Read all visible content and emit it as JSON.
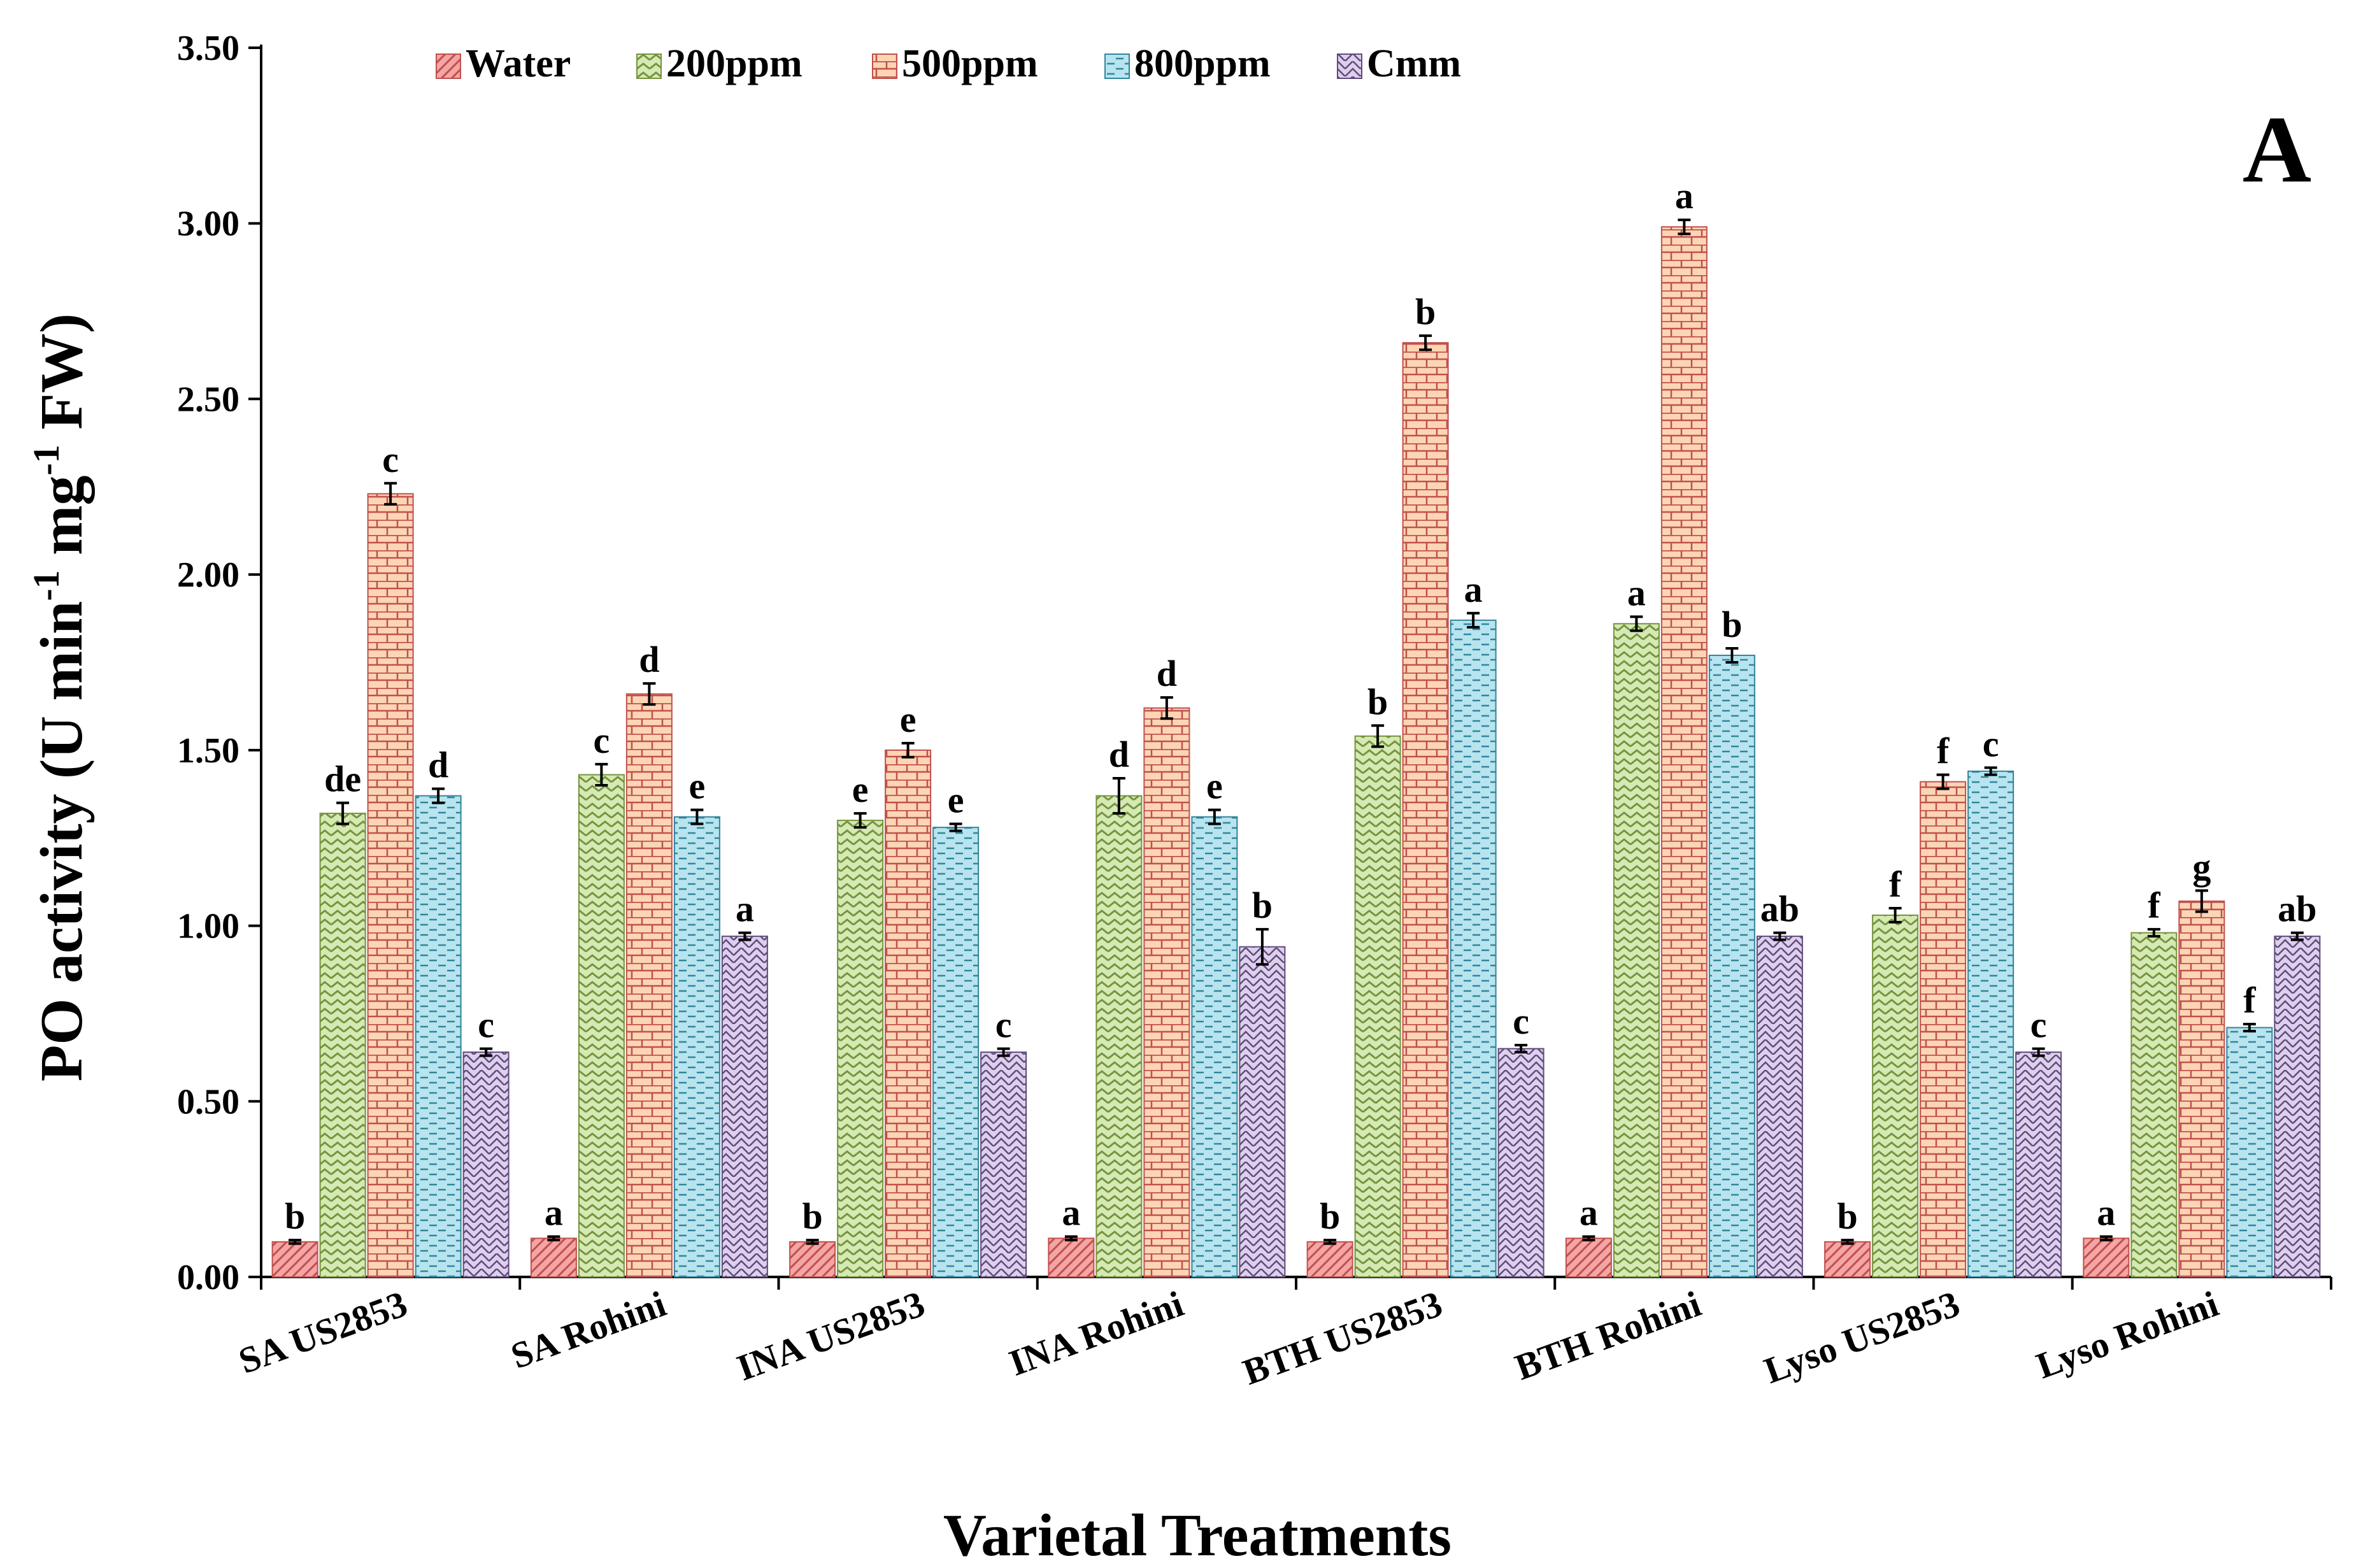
{
  "chart_data": {
    "type": "bar",
    "panel_label": "A",
    "xlabel": "Varietal Treatments",
    "ylabel": {
      "part1": "PO activity (U min",
      "sup1": "-1",
      "part2": " mg",
      "sup2": "-1",
      "part3": " FW)"
    },
    "ylim": [
      0,
      3.5
    ],
    "yticks": [
      {
        "value": 0,
        "label": "0.00"
      },
      {
        "value": 0.5,
        "label": "0.50"
      },
      {
        "value": 1.0,
        "label": "1.00"
      },
      {
        "value": 1.5,
        "label": "1.50"
      },
      {
        "value": 2.0,
        "label": "2.00"
      },
      {
        "value": 2.5,
        "label": "2.50"
      },
      {
        "value": 3.0,
        "label": "3.00"
      },
      {
        "value": 3.5,
        "label": "3.50"
      }
    ],
    "grid": false,
    "legend_position": "top-left",
    "categories": [
      "SA US2853",
      "SA Rohini",
      "INA US2853",
      "INA Rohini",
      "BTH US2853",
      "BTH Rohini",
      "Lyso US2853",
      "Lyso Rohini"
    ],
    "series": [
      {
        "name": "Water",
        "fill": "#f4a5a5",
        "stroke": "#c0504d",
        "pattern": "diag",
        "values": [
          0.1,
          0.11,
          0.1,
          0.11,
          0.1,
          0.11,
          0.1,
          0.11
        ],
        "errors": [
          0.005,
          0.005,
          0.005,
          0.005,
          0.005,
          0.005,
          0.005,
          0.005
        ],
        "letters": [
          "b",
          "a",
          "b",
          "a",
          "b",
          "a",
          "b",
          "a"
        ]
      },
      {
        "name": "200ppm",
        "fill": "#d5e9b5",
        "stroke": "#76933c",
        "pattern": "zigzag",
        "values": [
          1.32,
          1.43,
          1.3,
          1.37,
          1.54,
          1.86,
          1.03,
          0.98
        ],
        "errors": [
          0.03,
          0.03,
          0.02,
          0.05,
          0.03,
          0.02,
          0.02,
          0.01
        ],
        "letters": [
          "de",
          "c",
          "e",
          "d",
          "b",
          "a",
          "f",
          "f"
        ]
      },
      {
        "name": "500ppm",
        "fill": "#fcd5b4",
        "stroke": "#c0504d",
        "pattern": "brick",
        "values": [
          2.23,
          1.66,
          1.5,
          1.62,
          2.66,
          2.99,
          1.41,
          1.07
        ],
        "errors": [
          0.03,
          0.03,
          0.02,
          0.03,
          0.02,
          0.02,
          0.02,
          0.03
        ],
        "letters": [
          "c",
          "d",
          "e",
          "d",
          "b",
          "a",
          "f",
          "g"
        ]
      },
      {
        "name": "800ppm",
        "fill": "#b7e4ee",
        "stroke": "#31859c",
        "pattern": "dash",
        "values": [
          1.37,
          1.31,
          1.28,
          1.31,
          1.87,
          1.77,
          1.44,
          0.71
        ],
        "errors": [
          0.02,
          0.02,
          0.01,
          0.02,
          0.02,
          0.02,
          0.01,
          0.01
        ],
        "letters": [
          "d",
          "e",
          "e",
          "e",
          "a",
          "b",
          "c",
          "f"
        ]
      },
      {
        "name": "Cmm",
        "fill": "#ddd0ec",
        "stroke": "#604a7b",
        "pattern": "zigdiag",
        "values": [
          0.64,
          0.97,
          0.64,
          0.94,
          0.65,
          0.97,
          0.64,
          0.97
        ],
        "errors": [
          0.01,
          0.01,
          0.01,
          0.05,
          0.01,
          0.01,
          0.01,
          0.01
        ],
        "letters": [
          "c",
          "a",
          "c",
          "b",
          "c",
          "ab",
          "c",
          "ab"
        ]
      }
    ]
  }
}
